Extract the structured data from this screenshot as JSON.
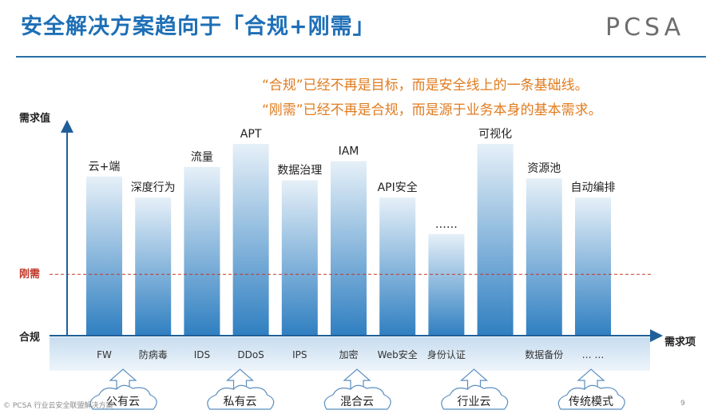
{
  "page": {
    "title": "安全解决方案趋向于「合规+刚需」",
    "logo": "PCSA",
    "quotes": [
      "“合规”已经不再是目标，而是安全线上的一条基础线。",
      "“刚需”已经不再是合规，而是源于业务本身的基本需求。"
    ],
    "footer": "© PCSA 行业云安全联盟解决方案",
    "page_number": "9"
  },
  "colors": {
    "title": "#1e6fb6",
    "quote": "#e07b1e",
    "threshold": "#c0392b",
    "bar_top": "#e6f0f8",
    "bar_bottom": "#2f7fc1",
    "axis": "#1f5f99"
  },
  "chart_data": {
    "type": "bar",
    "ylabel": "需求值",
    "xlabel": "需求项",
    "y_levels": [
      {
        "label": "合规",
        "value": 0
      },
      {
        "label": "刚需",
        "value": 32
      }
    ],
    "ylim": [
      0,
      100
    ],
    "bars": [
      {
        "top_label": "云+端",
        "bottom_label": "FW",
        "value": 83
      },
      {
        "top_label": "深度行为",
        "bottom_label": "防病毒",
        "value": 72
      },
      {
        "top_label": "流量",
        "bottom_label": "IDS",
        "value": 88
      },
      {
        "top_label": "APT",
        "bottom_label": "DDoS",
        "value": 100
      },
      {
        "top_label": "数据治理",
        "bottom_label": "IPS",
        "value": 81
      },
      {
        "top_label": "IAM",
        "bottom_label": "加密",
        "value": 91
      },
      {
        "top_label": "API安全",
        "bottom_label": "Web安全",
        "value": 72
      },
      {
        "top_label": "……",
        "bottom_label": "身份认证",
        "value": 53
      },
      {
        "top_label": "可视化",
        "bottom_label": "",
        "value": 100
      },
      {
        "top_label": "资源池",
        "bottom_label": "数据备份",
        "value": 82
      },
      {
        "top_label": "自动编排",
        "bottom_label": "… …",
        "value": 72
      }
    ],
    "groups": [
      "公有云",
      "私有云",
      "混合云",
      "行业云",
      "传统模式"
    ]
  }
}
